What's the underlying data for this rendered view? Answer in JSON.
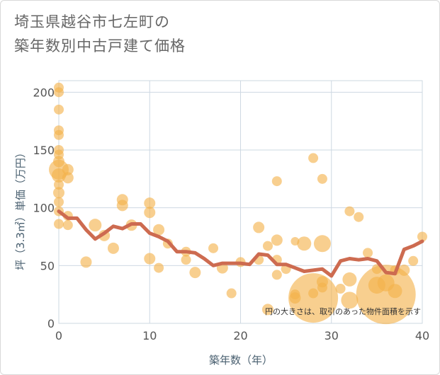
{
  "chart_data": {
    "type": "scatter",
    "title_line1": "埼玉県越谷市七左町の",
    "title_line2": "築年数別中古戸建て価格",
    "xlabel": "築年数（年）",
    "ylabel": "坪（3.3㎡）単価（万円）",
    "xlim": [
      0,
      40
    ],
    "ylim": [
      0,
      210
    ],
    "x_ticks": [
      0,
      10,
      20,
      30,
      40
    ],
    "y_ticks": [
      0,
      50,
      100,
      150,
      200
    ],
    "note": "円の大きさは、取引のあった物件面積を示す",
    "colors": {
      "bubble": "#f3b24a",
      "line": "#cd6b50",
      "grid": "#ced8e2"
    },
    "bubbles": [
      {
        "x": 0,
        "y": 204,
        "s": 7
      },
      {
        "x": 0,
        "y": 200,
        "s": 7
      },
      {
        "x": 0,
        "y": 185,
        "s": 7
      },
      {
        "x": 0,
        "y": 167,
        "s": 7
      },
      {
        "x": 0,
        "y": 163,
        "s": 7
      },
      {
        "x": 0,
        "y": 150,
        "s": 7
      },
      {
        "x": 0,
        "y": 146,
        "s": 7
      },
      {
        "x": 0,
        "y": 140,
        "s": 8
      },
      {
        "x": 0,
        "y": 133,
        "s": 14
      },
      {
        "x": 0,
        "y": 128,
        "s": 10
      },
      {
        "x": 0,
        "y": 120,
        "s": 7
      },
      {
        "x": 0,
        "y": 113,
        "s": 8
      },
      {
        "x": 0,
        "y": 105,
        "s": 7
      },
      {
        "x": 0,
        "y": 97,
        "s": 7
      },
      {
        "x": 0,
        "y": 86,
        "s": 7
      },
      {
        "x": 1,
        "y": 133,
        "s": 8
      },
      {
        "x": 1,
        "y": 126,
        "s": 8
      },
      {
        "x": 1,
        "y": 93,
        "s": 7
      },
      {
        "x": 1,
        "y": 85,
        "s": 7
      },
      {
        "x": 3,
        "y": 53,
        "s": 8
      },
      {
        "x": 4,
        "y": 85,
        "s": 9
      },
      {
        "x": 5,
        "y": 76,
        "s": 8
      },
      {
        "x": 6,
        "y": 65,
        "s": 8
      },
      {
        "x": 7,
        "y": 107,
        "s": 8
      },
      {
        "x": 7,
        "y": 102,
        "s": 8
      },
      {
        "x": 8,
        "y": 85,
        "s": 8
      },
      {
        "x": 10,
        "y": 104,
        "s": 8
      },
      {
        "x": 10,
        "y": 96,
        "s": 8
      },
      {
        "x": 10,
        "y": 56,
        "s": 8
      },
      {
        "x": 11,
        "y": 81,
        "s": 8
      },
      {
        "x": 11,
        "y": 48,
        "s": 7
      },
      {
        "x": 12,
        "y": 69,
        "s": 7
      },
      {
        "x": 14,
        "y": 62,
        "s": 7
      },
      {
        "x": 14,
        "y": 55,
        "s": 7
      },
      {
        "x": 15,
        "y": 44,
        "s": 8
      },
      {
        "x": 17,
        "y": 65,
        "s": 7
      },
      {
        "x": 18,
        "y": 48,
        "s": 8
      },
      {
        "x": 19,
        "y": 26,
        "s": 7
      },
      {
        "x": 20,
        "y": 53,
        "s": 7
      },
      {
        "x": 22,
        "y": 83,
        "s": 8
      },
      {
        "x": 22,
        "y": 55,
        "s": 7
      },
      {
        "x": 23,
        "y": 67,
        "s": 7
      },
      {
        "x": 23,
        "y": 12,
        "s": 8
      },
      {
        "x": 24,
        "y": 123,
        "s": 7
      },
      {
        "x": 24,
        "y": 72,
        "s": 8
      },
      {
        "x": 24,
        "y": 55,
        "s": 7
      },
      {
        "x": 24,
        "y": 42,
        "s": 7
      },
      {
        "x": 25,
        "y": 47,
        "s": 7
      },
      {
        "x": 26,
        "y": 71,
        "s": 6
      },
      {
        "x": 26,
        "y": 25,
        "s": 7
      },
      {
        "x": 26,
        "y": 22,
        "s": 8
      },
      {
        "x": 27,
        "y": 69,
        "s": 10
      },
      {
        "x": 28,
        "y": 143,
        "s": 7
      },
      {
        "x": 28,
        "y": 26,
        "s": 7
      },
      {
        "x": 28,
        "y": 22,
        "s": 35
      },
      {
        "x": 29,
        "y": 125,
        "s": 7
      },
      {
        "x": 29,
        "y": 69,
        "s": 12
      },
      {
        "x": 29,
        "y": 36,
        "s": 8
      },
      {
        "x": 29,
        "y": 31,
        "s": 7
      },
      {
        "x": 31,
        "y": 30,
        "s": 7
      },
      {
        "x": 32,
        "y": 97,
        "s": 7
      },
      {
        "x": 32,
        "y": 38,
        "s": 10
      },
      {
        "x": 32,
        "y": 20,
        "s": 12
      },
      {
        "x": 33,
        "y": 92,
        "s": 7
      },
      {
        "x": 34,
        "y": 61,
        "s": 7
      },
      {
        "x": 35,
        "y": 47,
        "s": 7
      },
      {
        "x": 35,
        "y": 33,
        "s": 12
      },
      {
        "x": 36,
        "y": 35,
        "s": 12
      },
      {
        "x": 36,
        "y": 25,
        "s": 42
      },
      {
        "x": 37,
        "y": 46,
        "s": 7
      },
      {
        "x": 37,
        "y": 28,
        "s": 10
      },
      {
        "x": 38,
        "y": 46,
        "s": 8
      },
      {
        "x": 39,
        "y": 54,
        "s": 7
      },
      {
        "x": 40,
        "y": 75,
        "s": 7
      }
    ],
    "line_x": [
      0,
      1,
      2,
      3,
      4,
      5,
      6,
      7,
      8,
      9,
      10,
      11,
      12,
      13,
      14,
      15,
      16,
      17,
      18,
      19,
      20,
      21,
      22,
      23,
      24,
      25,
      26,
      27,
      28,
      29,
      30,
      31,
      32,
      33,
      34,
      35,
      36,
      37,
      38,
      39,
      40
    ],
    "line_y": [
      97,
      91,
      91,
      81,
      73,
      78,
      84,
      82,
      86,
      86,
      78,
      75,
      71,
      62,
      62,
      61,
      56,
      50,
      52,
      52,
      52,
      51,
      60,
      59,
      51,
      51,
      48,
      45,
      46,
      47,
      41,
      54,
      56,
      55,
      56,
      54,
      44,
      43,
      64,
      67,
      71
    ]
  }
}
